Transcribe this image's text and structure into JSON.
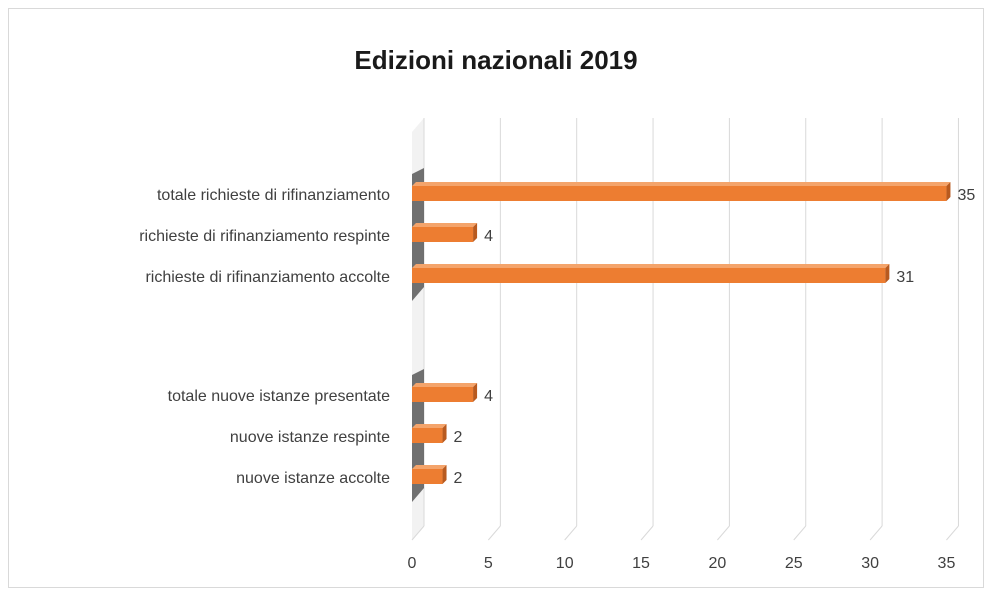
{
  "chart_data": {
    "type": "bar",
    "orientation": "horizontal",
    "style": "3d",
    "title": "Edizioni nazionali 2019",
    "groups": [
      {
        "categories": [
          "totale richieste di rifinanziamento",
          "richieste di rifinanziamento respinte",
          "richieste di rifinanziamento accolte"
        ],
        "values": [
          35,
          4,
          31
        ]
      },
      {
        "categories": [
          "totale nuove istanze presentate",
          "nuove istanze respinte",
          "nuove istanze accolte"
        ],
        "values": [
          4,
          2,
          2
        ]
      }
    ],
    "xlim": [
      0,
      35
    ],
    "xticks": [
      0,
      5,
      10,
      15,
      20,
      25,
      30,
      35
    ],
    "grid": true,
    "legend": "none",
    "data_labels": true,
    "colors": {
      "bar": "#ed7d31",
      "bar_top": "#f4a46b",
      "bar_dark": "#b85a1f",
      "grid": "#d9d9d9",
      "wall": "#595959",
      "text": "#404040"
    }
  }
}
